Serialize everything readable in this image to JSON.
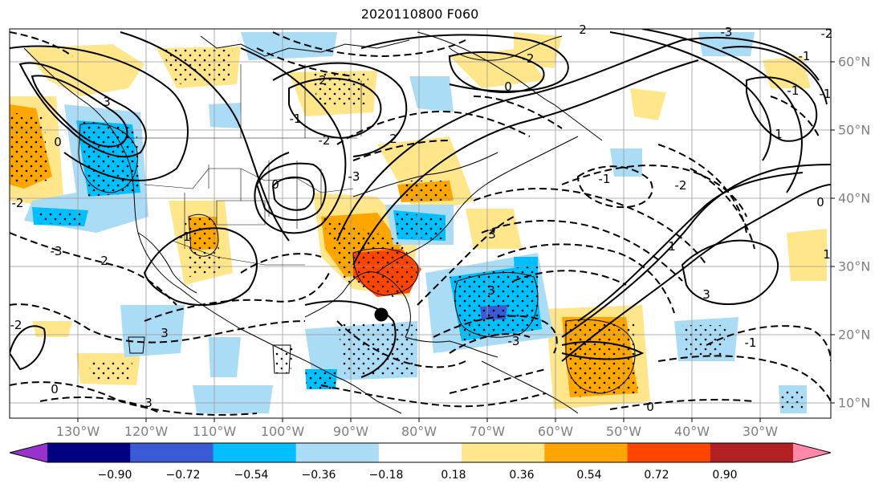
{
  "title": "2020110800 F060",
  "lon_labels": [
    "130°W",
    "120°W",
    "110°W",
    "100°W",
    "90°W",
    "80°W",
    "70°W",
    "60°W",
    "50°W",
    "40°W",
    "30°W"
  ],
  "lat_labels": [
    "60°N",
    "50°N",
    "40°N",
    "30°N",
    "20°N",
    "10°N"
  ],
  "colorbar": {
    "ticks": [
      "−0.90",
      "−0.72",
      "−0.54",
      "−0.36",
      "−0.18",
      "0.18",
      "0.36",
      "0.54",
      "0.72",
      "0.90"
    ],
    "colors": [
      "#9932cc",
      "#000080",
      "#3b5bd6",
      "#00bfff",
      "#aadcf6",
      "#ffffff",
      "#ffe68a",
      "#ffa500",
      "#ff4500",
      "#b22222",
      "#ff88aa"
    ]
  },
  "contour_labels": [
    "3",
    "0",
    "-2",
    "2",
    "-3",
    "3",
    "0",
    "3",
    "-1",
    "2",
    "-1",
    "-2",
    "0",
    "-3",
    "2",
    "3",
    "0",
    "2",
    "-2",
    "-1",
    "-2",
    "1",
    "3",
    "-1",
    "0",
    "1",
    "1",
    "-1",
    "-3",
    "0",
    "-1",
    "-1",
    "3",
    "-3",
    "-2",
    "-2"
  ],
  "marker": {
    "lon": -86.5,
    "lat": 22.8
  }
}
